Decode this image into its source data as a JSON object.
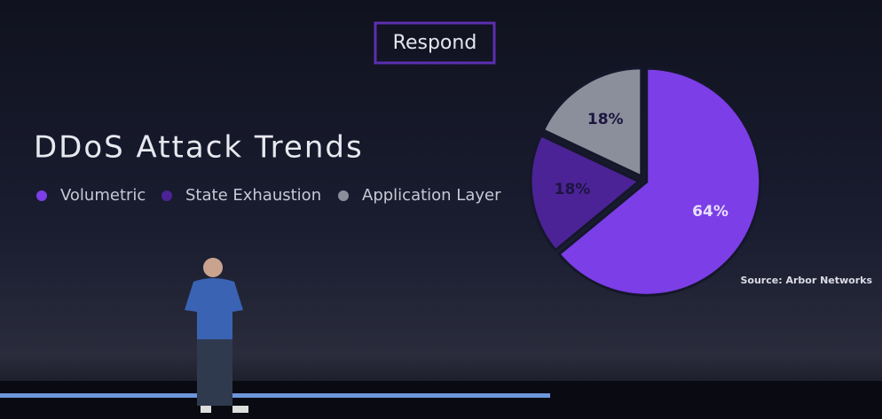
{
  "header": "Respond",
  "source": "Source: Arbor Networks",
  "chart_data": {
    "type": "pie",
    "title": "DDoS Attack Trends",
    "series": [
      {
        "name": "Volumetric",
        "color": "#7c3ee6",
        "values": [
          64
        ],
        "value_labels": [
          "64%"
        ]
      },
      {
        "name": "State Exhaustion",
        "color": "#4b2396",
        "values": [
          18
        ],
        "value_labels": [
          "18%"
        ]
      },
      {
        "name": "Application Layer",
        "color": "#8b8f9b",
        "values": [
          18
        ],
        "value_labels": [
          "18%"
        ]
      }
    ]
  }
}
